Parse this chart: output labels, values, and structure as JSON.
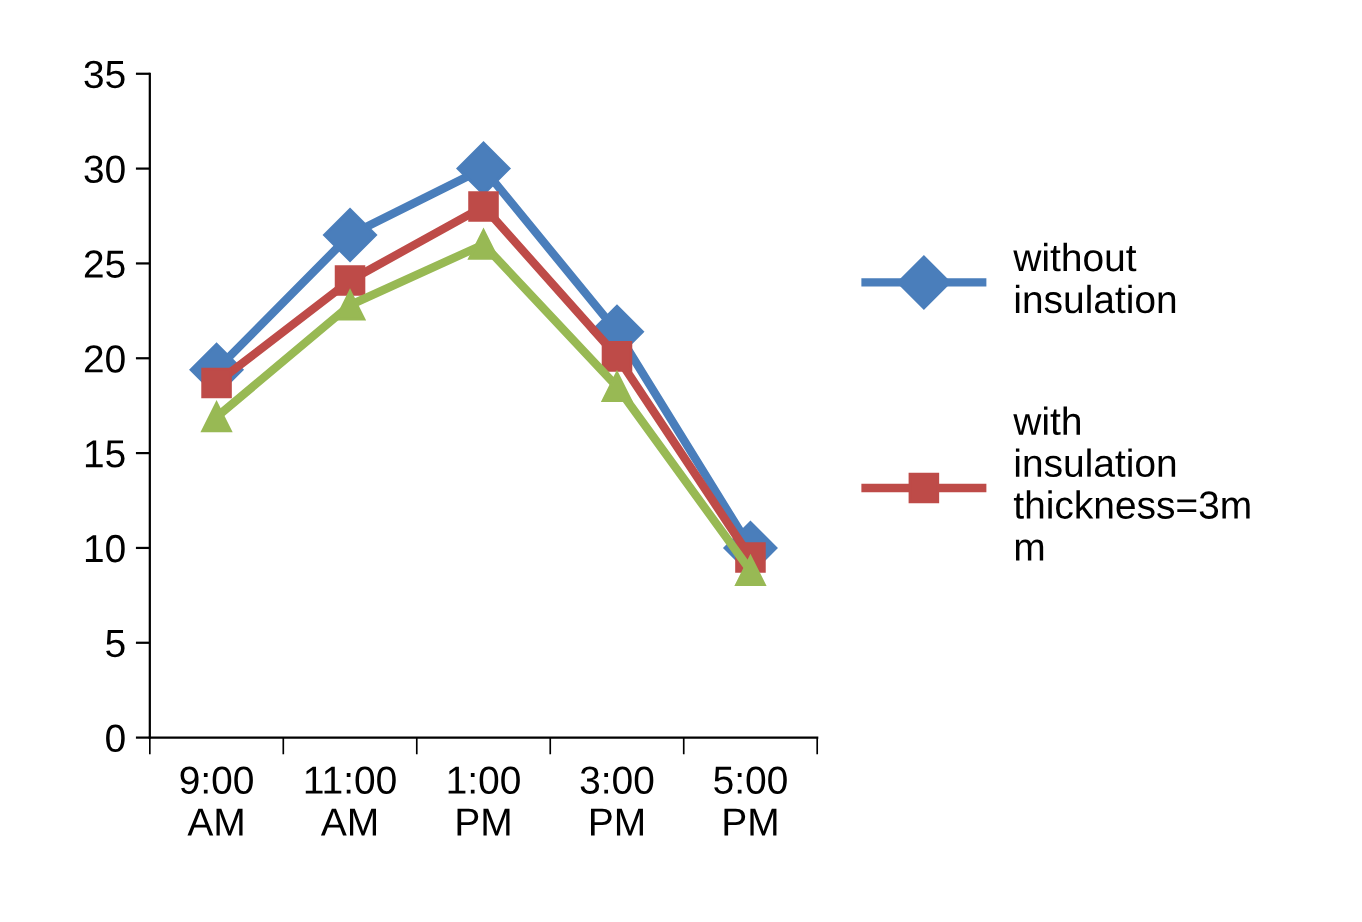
{
  "chart_data": {
    "type": "line",
    "categories": [
      "9:00\nAM",
      "11:00\nAM",
      "1:00\nPM",
      "3:00\nPM",
      "5:00\nPM"
    ],
    "series": [
      {
        "name": "without\ninsulation",
        "color": "#4a7ebb",
        "marker": "diamond",
        "values": [
          19.4,
          26.5,
          30,
          21.4,
          10
        ]
      },
      {
        "name": "with\ninsulation\nthickness=3m\nm",
        "color": "#be4b48",
        "marker": "square",
        "values": [
          18.7,
          24.1,
          28,
          20.1,
          9.5
        ]
      },
      {
        "color": "#98b954",
        "marker": "triangle",
        "values": [
          16.9,
          22.8,
          26,
          18.5,
          8.8
        ]
      }
    ],
    "ylim": [
      0,
      35
    ],
    "yticks": [
      0,
      5,
      10,
      15,
      20,
      25,
      30,
      35
    ],
    "grid": false,
    "legend": "right",
    "line_style": "solid"
  }
}
